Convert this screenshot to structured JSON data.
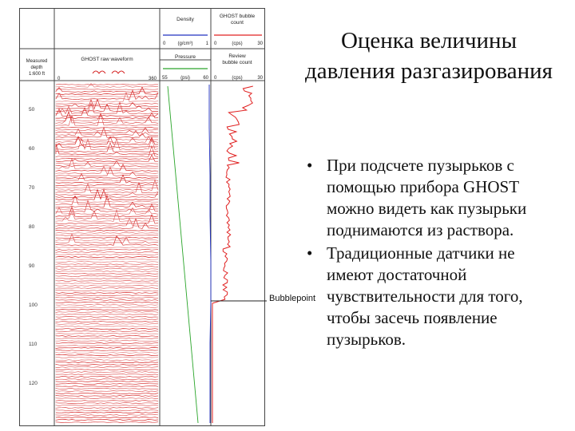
{
  "slide": {
    "title": "Оценка величины давления разгазирования",
    "bullets": [
      "При подсчете пузырьков с помощью прибора GHOST можно видеть как пузырьки поднимаются из раствора.",
      "Традиционные датчики не имеют достаточной чувствительности для того, чтобы засечь появление пузырьков."
    ],
    "bullet_glyph": "•"
  },
  "log": {
    "depth_header": "Measured depth 1:600 ft",
    "waveform_header": "GHOST raw waveform",
    "waveform_scale": [
      "0",
      "360"
    ],
    "density_header": "Density",
    "density_scale": [
      "0",
      "(g/cm³)",
      "1"
    ],
    "pressure_header": "Pressure",
    "pressure_scale": [
      "55",
      "(psi)",
      "60"
    ],
    "bubble_header": "GHOST bubble count",
    "bubble_scale": [
      "0",
      "(cps)",
      "30"
    ],
    "review_header": "Review bubble count",
    "review_scale": [
      "0",
      "(cps)",
      "30"
    ],
    "depths": [
      "50",
      "60",
      "70",
      "80",
      "90",
      "100",
      "110",
      "120"
    ],
    "bubblepoint_label": "Bubblepoint",
    "colors": {
      "waveform": "#d42020",
      "pressure": "#2aa52a",
      "density": "#2030c0",
      "bubble": "#e02020"
    }
  }
}
